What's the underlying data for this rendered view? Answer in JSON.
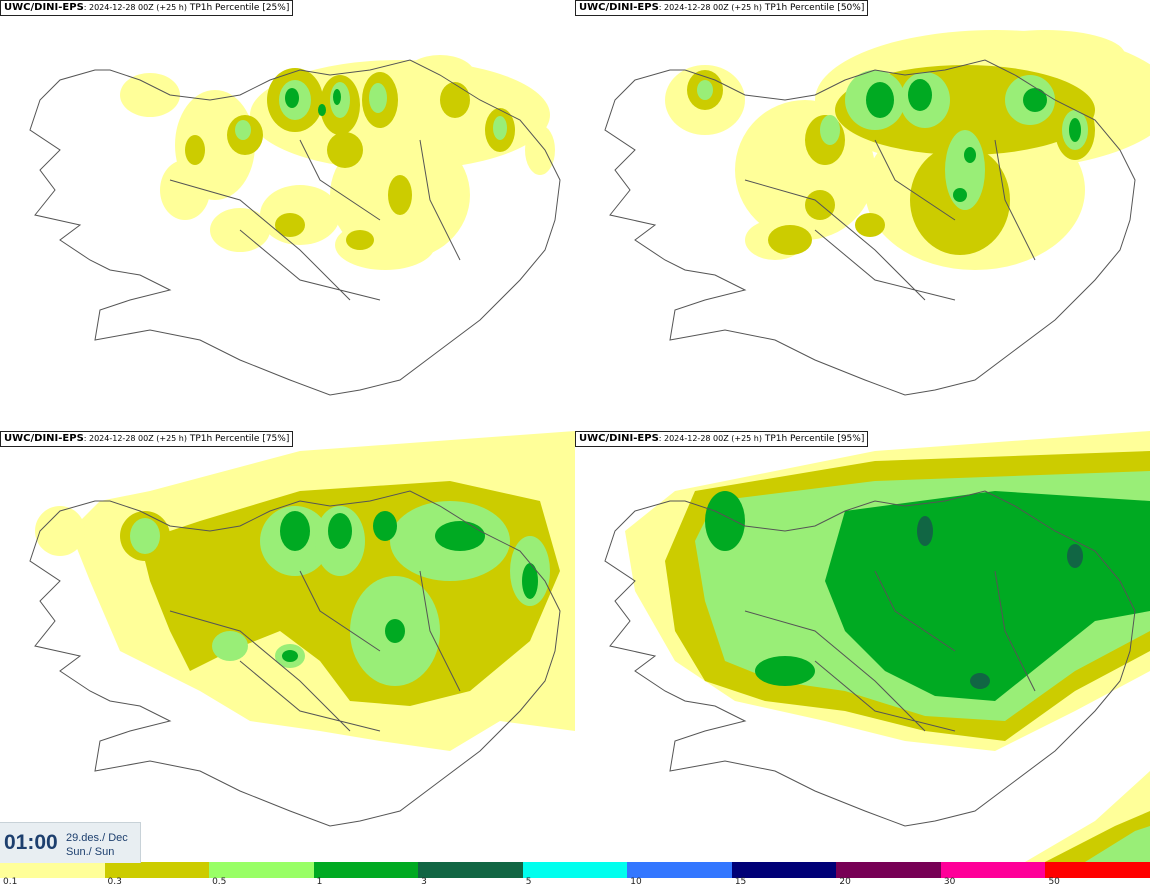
{
  "panels": [
    {
      "model": "UWC/DINI-EPS",
      "run": ": 2024-12-28 00Z (+25 h)",
      "label": " TP1h Percentile [25%]",
      "percentile": 25
    },
    {
      "model": "UWC/DINI-EPS",
      "run": ": 2024-12-28 00Z (+25 h)",
      "label": " TP1h Percentile [50%]",
      "percentile": 50
    },
    {
      "model": "UWC/DINI-EPS",
      "run": ": 2024-12-28 00Z (+25 h)",
      "label": " TP1h Percentile [75%]",
      "percentile": 75
    },
    {
      "model": "UWC/DINI-EPS",
      "run": ": 2024-12-28 00Z (+25 h)",
      "label": " TP1h Percentile [95%]",
      "percentile": 95
    }
  ],
  "time": {
    "clock": "01:00",
    "date": "29.des./ Dec",
    "day": "Sun./ Sun"
  },
  "legend": {
    "labels": [
      "0.1",
      "0.3",
      "0.5",
      "1",
      "3",
      "5",
      "10",
      "15",
      "20",
      "30",
      "50"
    ],
    "colors": [
      "#ffff99",
      "#cccc00",
      "#99ff66",
      "#00aa22",
      "#116644",
      "#00ffee",
      "#3377ff",
      "#000077",
      "#770055",
      "#ff0099",
      "#ff0000"
    ]
  },
  "colors": {
    "lvl1": "#ffff99",
    "lvl2": "#cccc00",
    "lvl3": "#99ee77",
    "lvl4": "#00aa22",
    "lvl5": "#116644",
    "coast": "#555555",
    "time_text": "#1d3f6e",
    "time_bg": "#e8eef2"
  }
}
